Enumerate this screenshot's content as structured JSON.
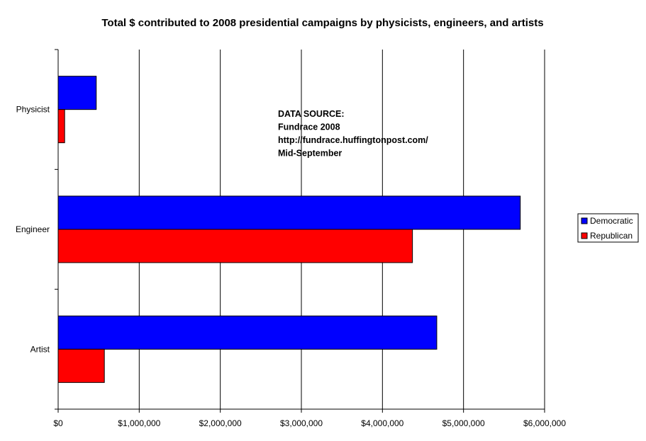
{
  "chart_data": {
    "type": "bar",
    "orientation": "horizontal",
    "title": "Total $ contributed to 2008 presidential campaigns by physicists, engineers, and artists",
    "categories": [
      "Physicist",
      "Engineer",
      "Artist"
    ],
    "series": [
      {
        "name": "Democratic",
        "color": "#0000ff",
        "values": [
          470000,
          5700000,
          4670000
        ]
      },
      {
        "name": "Republican",
        "color": "#ff0000",
        "values": [
          80000,
          4370000,
          570000
        ]
      }
    ],
    "xlim": [
      0,
      6000000
    ],
    "x_ticks": [
      0,
      1000000,
      2000000,
      3000000,
      4000000,
      5000000,
      6000000
    ],
    "x_tick_labels": [
      "$0",
      "$1,000,000",
      "$2,000,000",
      "$3,000,000",
      "$4,000,000",
      "$5,000,000",
      "$6,000,000"
    ],
    "grid": true,
    "legend_position": "right",
    "annotation": [
      "DATA SOURCE:",
      "Fundrace 2008",
      "http://fundrace.huffingtonpost.com/",
      "Mid-September"
    ]
  }
}
